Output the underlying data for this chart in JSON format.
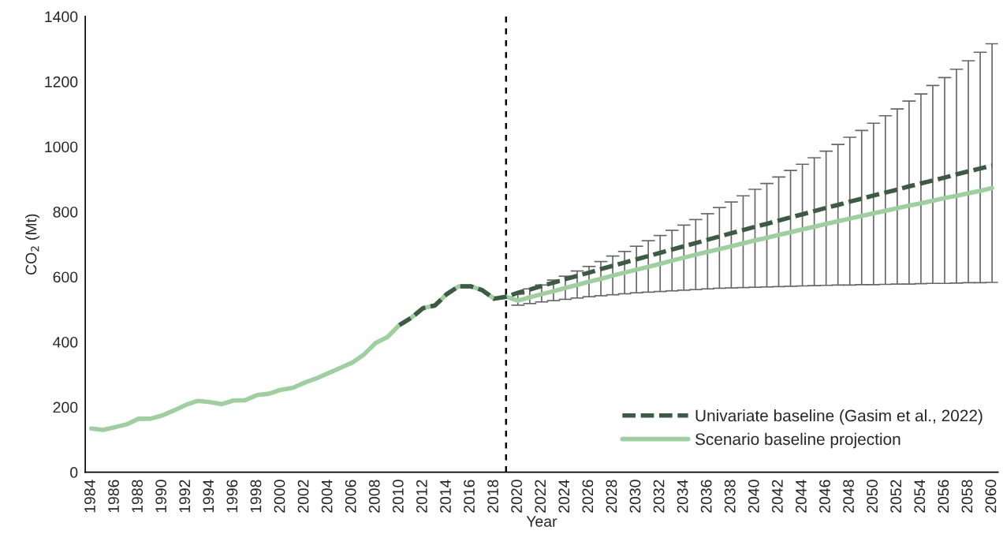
{
  "chart_data": {
    "type": "line",
    "xlabel": "Year",
    "ylabel": "CO$_{2}$ (Mt)",
    "xlim": [
      1983.5,
      2060.5
    ],
    "ylim": [
      0,
      1400
    ],
    "xticks": [
      1984,
      1986,
      1988,
      1990,
      1992,
      1994,
      1996,
      1998,
      2000,
      2002,
      2004,
      2006,
      2008,
      2010,
      2012,
      2014,
      2016,
      2018,
      2020,
      2022,
      2024,
      2026,
      2028,
      2030,
      2032,
      2034,
      2036,
      2038,
      2040,
      2042,
      2044,
      2046,
      2048,
      2050,
      2052,
      2054,
      2056,
      2058,
      2060
    ],
    "yticks": [
      0,
      200,
      400,
      600,
      800,
      1000,
      1200,
      1400
    ],
    "grid": false,
    "legend": "bottom right",
    "ref_lines": [
      {
        "axis": "x",
        "value": 2019,
        "color": "#000000",
        "line_style": "dashed"
      }
    ],
    "series": [
      {
        "name": "Univariate baseline (Gasim et al., 2022)",
        "color": "#3d5a45",
        "line_style": "dashed",
        "x": [
          2010,
          2011,
          2012,
          2013,
          2014,
          2015,
          2016,
          2017,
          2018,
          2019,
          2020,
          2021,
          2022,
          2023,
          2024,
          2025,
          2026,
          2027,
          2028,
          2029,
          2030,
          2031,
          2032,
          2033,
          2034,
          2035,
          2036,
          2037,
          2038,
          2039,
          2040,
          2041,
          2042,
          2043,
          2044,
          2045,
          2046,
          2047,
          2048,
          2049,
          2050,
          2051,
          2052,
          2053,
          2054,
          2055,
          2056,
          2057,
          2058,
          2059,
          2060
        ],
        "values": [
          452,
          474,
          504,
          512,
          547,
          571,
          571,
          559,
          533,
          539,
          551,
          561,
          572,
          582,
          593,
          603,
          613,
          624,
          634,
          644,
          654,
          664,
          674,
          684,
          694,
          704,
          714,
          724,
          734,
          744,
          754,
          763,
          773,
          783,
          792,
          802,
          812,
          821,
          831,
          840,
          850,
          859,
          868,
          878,
          887,
          896,
          905,
          915,
          924,
          933,
          942
        ]
      },
      {
        "name": "Scenario baseline projection",
        "color": "#9dcf9f",
        "line_style": "solid",
        "x": [
          1984,
          1985,
          1986,
          1987,
          1988,
          1989,
          1990,
          1991,
          1992,
          1993,
          1994,
          1995,
          1996,
          1997,
          1998,
          1999,
          2000,
          2001,
          2002,
          2003,
          2004,
          2005,
          2006,
          2007,
          2008,
          2009,
          2010,
          2011,
          2012,
          2013,
          2014,
          2015,
          2016,
          2017,
          2018,
          2019,
          2020,
          2021,
          2022,
          2023,
          2024,
          2025,
          2026,
          2027,
          2028,
          2029,
          2030,
          2031,
          2032,
          2033,
          2034,
          2035,
          2036,
          2037,
          2038,
          2039,
          2040,
          2041,
          2042,
          2043,
          2044,
          2045,
          2046,
          2047,
          2048,
          2049,
          2050,
          2051,
          2052,
          2053,
          2054,
          2055,
          2056,
          2057,
          2058,
          2059,
          2060
        ],
        "values": [
          134,
          130,
          138,
          147,
          164,
          164,
          174,
          190,
          207,
          219,
          215,
          209,
          220,
          221,
          237,
          241,
          253,
          259,
          275,
          288,
          304,
          320,
          336,
          361,
          397,
          415,
          452,
          474,
          504,
          512,
          547,
          571,
          571,
          559,
          533,
          539,
          527,
          537,
          547,
          556,
          566,
          575,
          585,
          594,
          604,
          613,
          622,
          631,
          640,
          650,
          659,
          668,
          677,
          685,
          694,
          703,
          712,
          720,
          729,
          737,
          746,
          754,
          763,
          771,
          779,
          787,
          795,
          803,
          811,
          819,
          826,
          834,
          842,
          849,
          857,
          864,
          873
        ],
        "errors": [
          null,
          null,
          null,
          null,
          null,
          null,
          null,
          null,
          null,
          null,
          null,
          null,
          null,
          null,
          null,
          null,
          null,
          null,
          null,
          null,
          null,
          null,
          null,
          null,
          null,
          null,
          null,
          null,
          null,
          null,
          null,
          null,
          null,
          null,
          null,
          null,
          [
            513,
            547
          ],
          [
            518,
            563
          ],
          [
            523,
            575
          ],
          [
            527,
            590
          ],
          [
            531,
            602
          ],
          [
            535,
            618
          ],
          [
            539,
            632
          ],
          [
            542,
            647
          ],
          [
            545,
            664
          ],
          [
            548,
            678
          ],
          [
            551,
            694
          ],
          [
            553,
            711
          ],
          [
            555,
            727
          ],
          [
            557,
            743
          ],
          [
            559,
            759
          ],
          [
            561,
            776
          ],
          [
            563,
            794
          ],
          [
            565,
            813
          ],
          [
            566,
            830
          ],
          [
            567,
            849
          ],
          [
            568,
            869
          ],
          [
            569,
            887
          ],
          [
            570,
            907
          ],
          [
            571,
            927
          ],
          [
            572,
            946
          ],
          [
            573,
            966
          ],
          [
            574,
            986
          ],
          [
            575,
            1007
          ],
          [
            575,
            1029
          ],
          [
            576,
            1050
          ],
          [
            576,
            1072
          ],
          [
            577,
            1095
          ],
          [
            578,
            1116
          ],
          [
            578,
            1140
          ],
          [
            579,
            1162
          ],
          [
            580,
            1188
          ],
          [
            580,
            1212
          ],
          [
            581,
            1238
          ],
          [
            582,
            1264
          ],
          [
            582,
            1290
          ],
          [
            583,
            1316
          ]
        ]
      }
    ]
  }
}
